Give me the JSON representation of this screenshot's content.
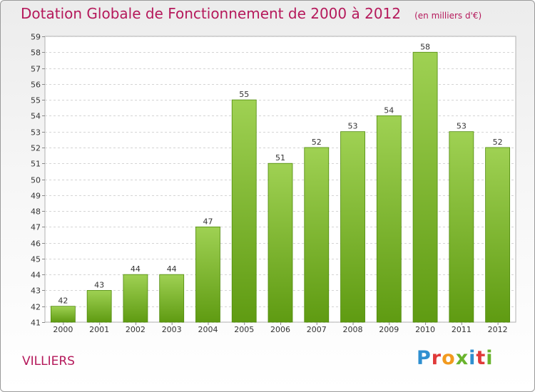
{
  "title": "Dotation Globale de Fonctionnement de 2000 à 2012",
  "unit_label": "(en milliers d'€)",
  "commune": "VILLIERS",
  "logo": {
    "text": "Proxiti",
    "colors": [
      "#2e8fd0",
      "#e03a3a",
      "#f29a1e",
      "#6ab42d",
      "#2e8fd0",
      "#e03a3a",
      "#6ab42d"
    ]
  },
  "colors": {
    "title": "#b5195b",
    "bar_light": "#9fd153",
    "bar_dark": "#5f9b12"
  },
  "chart_data": {
    "type": "bar",
    "categories": [
      "2000",
      "2001",
      "2002",
      "2003",
      "2004",
      "2005",
      "2006",
      "2007",
      "2008",
      "2009",
      "2010",
      "2011",
      "2012"
    ],
    "values": [
      42,
      43,
      44,
      44,
      47,
      55,
      51,
      52,
      53,
      54,
      58,
      53,
      52
    ],
    "ylim": [
      41,
      59
    ],
    "yticks": [
      41,
      42,
      43,
      44,
      45,
      46,
      47,
      48,
      49,
      50,
      51,
      52,
      53,
      54,
      55,
      56,
      57,
      58,
      59
    ],
    "grid": true
  }
}
